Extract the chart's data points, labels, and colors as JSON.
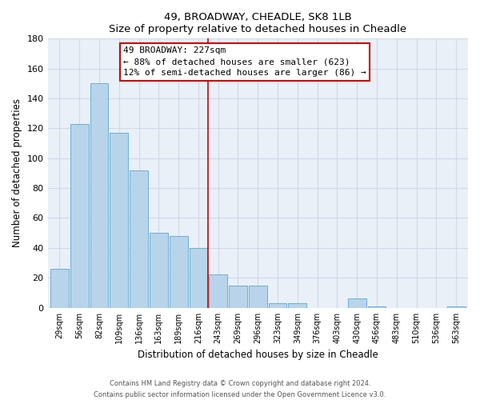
{
  "title": "49, BROADWAY, CHEADLE, SK8 1LB",
  "subtitle": "Size of property relative to detached houses in Cheadle",
  "xlabel": "Distribution of detached houses by size in Cheadle",
  "ylabel": "Number of detached properties",
  "bar_labels": [
    "29sqm",
    "56sqm",
    "82sqm",
    "109sqm",
    "136sqm",
    "163sqm",
    "189sqm",
    "216sqm",
    "243sqm",
    "269sqm",
    "296sqm",
    "323sqm",
    "349sqm",
    "376sqm",
    "403sqm",
    "430sqm",
    "456sqm",
    "483sqm",
    "510sqm",
    "536sqm",
    "563sqm"
  ],
  "bar_values": [
    26,
    123,
    150,
    117,
    92,
    50,
    48,
    40,
    22,
    15,
    15,
    3,
    3,
    0,
    0,
    6,
    1,
    0,
    0,
    0,
    1
  ],
  "bar_color": "#b8d4ea",
  "bar_edge_color": "#6aaed6",
  "ylim": [
    0,
    180
  ],
  "yticks": [
    0,
    20,
    40,
    60,
    80,
    100,
    120,
    140,
    160,
    180
  ],
  "vline_x": 7.5,
  "vline_color": "#cc0000",
  "annotation_title": "49 BROADWAY: 227sqm",
  "annotation_line1": "← 88% of detached houses are smaller (623)",
  "annotation_line2": "12% of semi-detached houses are larger (86) →",
  "annotation_box_color": "#ffffff",
  "annotation_box_edge": "#cc0000",
  "footer1": "Contains HM Land Registry data © Crown copyright and database right 2024.",
  "footer2": "Contains public sector information licensed under the Open Government Licence v3.0.",
  "bg_color": "#eaf0f8",
  "fig_bg_color": "#ffffff",
  "grid_color": "#d0d8e8"
}
